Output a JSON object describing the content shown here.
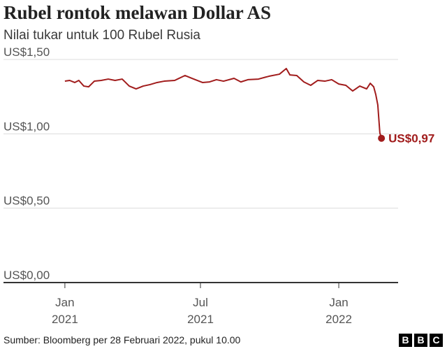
{
  "chart_data": {
    "type": "line",
    "title": "Rubel rontok melawan Dollar AS",
    "subtitle": "Nilai tukar untuk 100 Rubel Rusia",
    "source": "Sumber: Bloomberg per 28 Februari 2022, pukul 10.00",
    "logo": [
      "B",
      "B",
      "C"
    ],
    "color": "#a11c1c",
    "x": [
      0,
      0.21,
      0.43,
      0.61,
      0.83,
      1.04,
      1.29,
      1.59,
      1.9,
      2.2,
      2.51,
      2.82,
      3.12,
      3.43,
      3.73,
      4.04,
      4.35,
      4.81,
      5.26,
      5.57,
      6.03,
      6.34,
      6.64,
      6.95,
      7.41,
      7.71,
      8.02,
      8.48,
      8.94,
      9.4,
      9.7,
      9.86,
      10.16,
      10.47,
      10.77,
      11.08,
      11.39,
      11.69,
      12,
      12.31,
      12.61,
      12.92,
      13.22,
      13.38,
      13.53,
      13.62,
      13.71,
      13.8,
      13.87
    ],
    "values": [
      1.354,
      1.359,
      1.345,
      1.359,
      1.321,
      1.316,
      1.354,
      1.359,
      1.368,
      1.359,
      1.368,
      1.321,
      1.302,
      1.321,
      1.331,
      1.345,
      1.354,
      1.359,
      1.392,
      1.373,
      1.345,
      1.349,
      1.364,
      1.354,
      1.373,
      1.349,
      1.364,
      1.368,
      1.387,
      1.401,
      1.439,
      1.396,
      1.392,
      1.349,
      1.326,
      1.359,
      1.354,
      1.364,
      1.335,
      1.326,
      1.288,
      1.321,
      1.302,
      1.34,
      1.316,
      1.265,
      1.194,
      1.006,
      0.97
    ],
    "value_labels": [
      null,
      null,
      null,
      null,
      null,
      null,
      null,
      null,
      null,
      null,
      null,
      null,
      null,
      null,
      null,
      null,
      null,
      null,
      null,
      null,
      null,
      null,
      null,
      null,
      null,
      null,
      null,
      null,
      null,
      null,
      null,
      null,
      null,
      null,
      null,
      null,
      null,
      null,
      null,
      null,
      null,
      null,
      null,
      null,
      null,
      null,
      null,
      null,
      "US$0,97"
    ],
    "xlim": [
      -2.69,
      14.6
    ],
    "xticks": [
      {
        "value": 0,
        "label": "Jan\n2021"
      },
      {
        "value": 5.94,
        "label": "Jul\n2021"
      },
      {
        "value": 12,
        "label": "Jan\n2022"
      }
    ],
    "ylim": [
      0,
      1.5
    ],
    "yticks": [
      {
        "value": 0,
        "label": "US$0,00"
      },
      {
        "value": 0.5,
        "label": "US$0,50"
      },
      {
        "value": 1,
        "label": "US$1,00"
      },
      {
        "value": 1.5,
        "label": "US$1,50"
      }
    ],
    "grid": true
  }
}
